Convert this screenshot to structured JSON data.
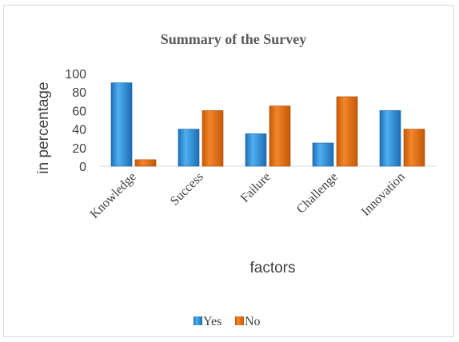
{
  "chart_data": {
    "type": "bar",
    "title": "Summary of the Survey",
    "xlabel": "factors",
    "ylabel": "in percentage",
    "categories": [
      "Knowledge",
      "Success",
      "Failure",
      "Challenge",
      "Innovation"
    ],
    "series": [
      {
        "name": "Yes",
        "values": [
          90,
          40,
          35,
          25,
          60
        ]
      },
      {
        "name": "No",
        "values": [
          7,
          60,
          65,
          75,
          40
        ]
      }
    ],
    "ylim": [
      0,
      100
    ],
    "yticks": [
      0,
      20,
      40,
      60,
      80,
      100
    ],
    "grid": false,
    "legend": "bottom",
    "colors": {
      "Yes": "#2e8fd8",
      "No": "#e46c0a"
    }
  }
}
